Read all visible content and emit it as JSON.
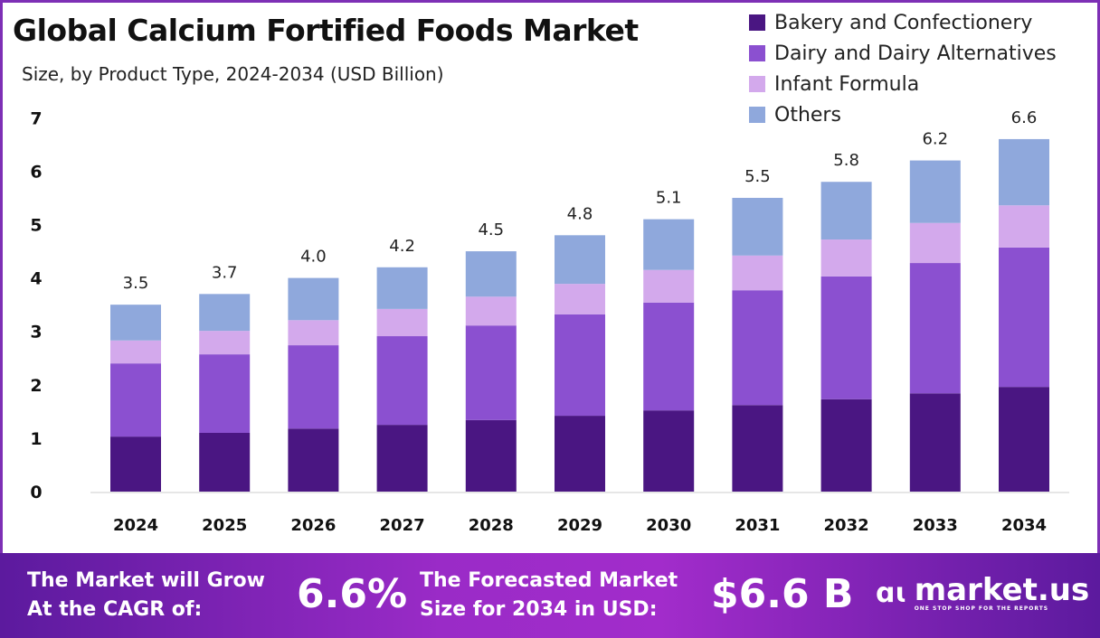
{
  "chart_data": {
    "type": "bar",
    "stacked": true,
    "title": "Global Calcium Fortified Foods Market",
    "subtitle": "Size, by Product Type, 2024-2034 (USD Billion)",
    "categories": [
      "2024",
      "2025",
      "2026",
      "2027",
      "2028",
      "2029",
      "2030",
      "2031",
      "2032",
      "2033",
      "2034"
    ],
    "series": [
      {
        "name": "Bakery and Confectionery",
        "color": "#4a1682",
        "values": [
          1.03,
          1.1,
          1.18,
          1.25,
          1.34,
          1.42,
          1.52,
          1.62,
          1.73,
          1.84,
          1.96
        ]
      },
      {
        "name": "Dairy and Dairy Alternatives",
        "color": "#8b50d0",
        "values": [
          1.37,
          1.47,
          1.56,
          1.66,
          1.77,
          1.9,
          2.02,
          2.15,
          2.3,
          2.44,
          2.61
        ]
      },
      {
        "name": "Infant Formula",
        "color": "#d3a9ec",
        "values": [
          0.43,
          0.44,
          0.47,
          0.51,
          0.54,
          0.57,
          0.61,
          0.65,
          0.69,
          0.75,
          0.79
        ]
      },
      {
        "name": "Others",
        "color": "#8fa8dc",
        "values": [
          0.67,
          0.69,
          0.79,
          0.78,
          0.85,
          0.91,
          0.95,
          1.08,
          1.08,
          1.17,
          1.24
        ]
      }
    ],
    "totals": [
      "3.5",
      "3.7",
      "4.0",
      "4.2",
      "4.5",
      "4.8",
      "5.1",
      "5.5",
      "5.8",
      "6.2",
      "6.6"
    ],
    "yticks": [
      "0",
      "1",
      "2",
      "3",
      "4",
      "5",
      "6",
      "7"
    ],
    "ylim": [
      0,
      7
    ],
    "grid": false,
    "legend": "top-right"
  },
  "footer": {
    "cagr_label_1": "The Market will Grow",
    "cagr_label_2": "At the CAGR of:",
    "cagr_value": "6.6%",
    "size_label_1": "The Forecasted Market",
    "size_label_2": "Size for 2034 in USD:",
    "size_value": "$6.6 B",
    "logo_name": "market.us",
    "logo_tagline": "ONE STOP SHOP FOR THE REPORTS"
  }
}
